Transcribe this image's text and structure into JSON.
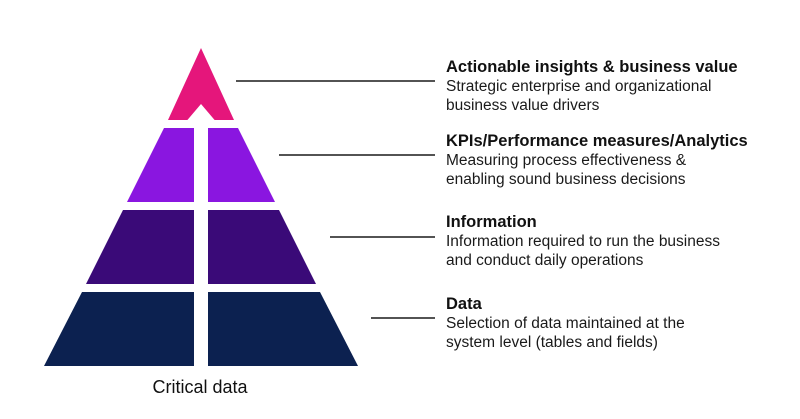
{
  "levels": [
    {
      "title": "Actionable insights & business value",
      "description_lines": [
        "Strategic enterprise and organizational",
        "business value drivers"
      ],
      "color": "#e5167b"
    },
    {
      "title": "KPIs/Performance measures/Analytics",
      "description_lines": [
        "Measuring process effectiveness &",
        "enabling sound business decisions"
      ],
      "color": "#8a16e0"
    },
    {
      "title": "Information",
      "description_lines": [
        "Information required to run the business",
        "and conduct daily operations"
      ],
      "color": "#3a0a78"
    },
    {
      "title": "Data",
      "description_lines": [
        "Selection of data maintained at the",
        "system level (tables and fields)"
      ],
      "color": "#0c2150"
    }
  ],
  "bottom_label": "Critical data",
  "connector_color": "#1a1a1a"
}
